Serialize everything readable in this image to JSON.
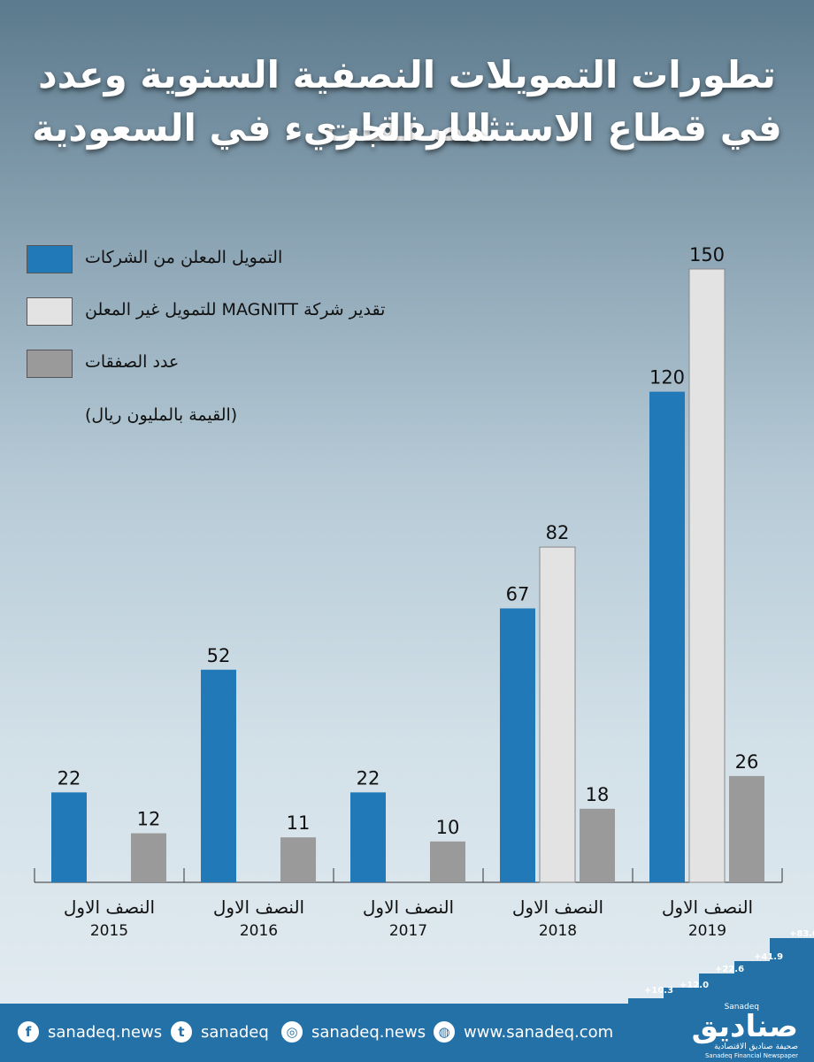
{
  "title_line1": "تطورات التمويلات النصفية السنوية وعدد الصفقات",
  "title_line2": "في قطاع الاستثمار الجريء في السعودية",
  "legend": {
    "item1": "التمويل المعلن من الشركات",
    "item2": "تقدير شركة MAGNITT للتمويل غير المعلن",
    "item3": "عدد الصفقات",
    "unit_note": "(القيمة بالمليون ريال)"
  },
  "colors": {
    "disclosed": "#2279b8",
    "estimated": "#e3e3e3",
    "deals": "#9a9a9a"
  },
  "chart_data": {
    "type": "bar",
    "categories": [
      {
        "half": "النصف الاول",
        "year": "2015"
      },
      {
        "half": "النصف الاول",
        "year": "2016"
      },
      {
        "half": "النصف الاول",
        "year": "2017"
      },
      {
        "half": "النصف الاول",
        "year": "2018"
      },
      {
        "half": "النصف الاول",
        "year": "2019"
      }
    ],
    "series": [
      {
        "name": "التمويل المعلن من الشركات",
        "values": [
          22,
          52,
          22,
          67,
          120
        ]
      },
      {
        "name": "تقدير شركة MAGNITT للتمويل غير المعلن",
        "values": [
          null,
          null,
          null,
          82,
          150
        ]
      },
      {
        "name": "عدد الصفقات",
        "values": [
          12,
          11,
          10,
          18,
          26
        ]
      }
    ],
    "ylim": [
      0,
      150
    ]
  },
  "footer": {
    "facebook": "sanadeq.news",
    "twitter": "sanadeq",
    "instagram": "sanadeq.news",
    "website": "www.sanadeq.com",
    "logo_ar": "صناديق",
    "logo_latin": "Sanadeq",
    "logo_sub_ar": "صحيفة صناديق الاقتصادية",
    "logo_sub_en": "Sanadeq Financial Newspaper",
    "steps": [
      "+10.3",
      "+12.0",
      "+22.6",
      "+41.9",
      "+83.0"
    ]
  }
}
